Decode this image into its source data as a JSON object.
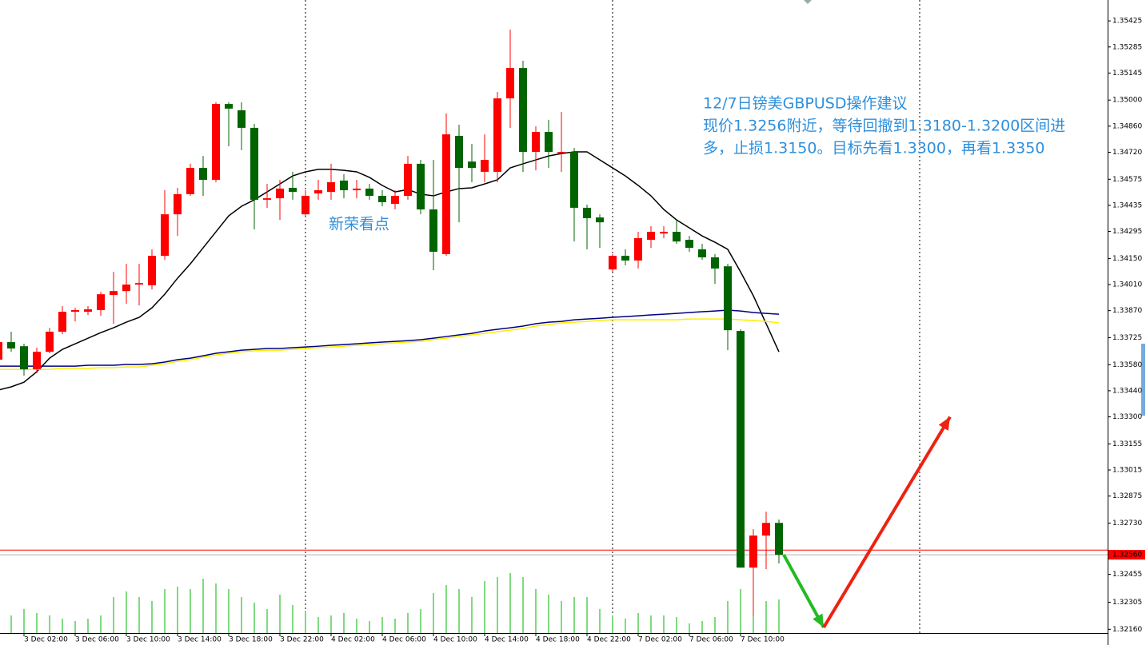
{
  "chart_data": {
    "type": "candlestick",
    "annotations": [
      "12/7日镑美GBPUSD操作建议",
      "现价1.3256附近，等待回撤到1.3180-1.3200区间进",
      "多，止损1.3150。目标先看1.3300，再看1.3350"
    ],
    "watermark": "新荣看点",
    "up_color": "#ff0000",
    "down_color": "#006400",
    "ylim": [
      1.3214,
      1.35537
    ],
    "yticks": [
      1.35425,
      1.35285,
      1.35145,
      {
        "value": 1.35,
        "label": "1.35000"
      },
      {
        "value": 1.3486,
        "label": "1.34860"
      },
      {
        "value": 1.3472,
        "label": "1.34720"
      },
      1.34575,
      1.34435,
      1.34295,
      {
        "value": 1.3415,
        "label": "1.34150"
      },
      {
        "value": 1.3401,
        "label": "1.34010"
      },
      {
        "value": 1.3387,
        "label": "1.33870"
      },
      1.33725,
      {
        "value": 1.3358,
        "label": "1.33580"
      },
      {
        "value": 1.3344,
        "label": "1.33440"
      },
      {
        "value": 1.333,
        "label": "1.33300"
      },
      1.33155,
      1.33015,
      1.32875,
      {
        "value": 1.3273,
        "label": "1.32730"
      },
      1.32455,
      1.32305,
      {
        "value": 1.3216,
        "label": "1.32160"
      }
    ],
    "categories": [
      null,
      null,
      "3 Dec 02:00",
      null,
      null,
      null,
      "3 Dec 06:00",
      null,
      null,
      null,
      "3 Dec 10:00",
      null,
      null,
      null,
      "3 Dec 14:00",
      null,
      null,
      null,
      "3 Dec 18:00",
      null,
      null,
      null,
      "3 Dec 22:00",
      null,
      null,
      null,
      "4 Dec 02:00",
      null,
      null,
      null,
      "4 Dec 06:00",
      null,
      null,
      null,
      "4 Dec 10:00",
      null,
      null,
      null,
      "4 Dec 14:00",
      null,
      null,
      null,
      "4 Dec 18:00",
      null,
      null,
      null,
      "4 Dec 22:00",
      null,
      null,
      null,
      "7 Dec 02:00",
      null,
      null,
      null,
      "7 Dec 06:00",
      null,
      null,
      null,
      "7 Dec 10:00",
      null,
      null,
      null
    ],
    "open": [
      1.33607,
      1.33701,
      1.33679,
      1.33555,
      1.33649,
      1.33757,
      1.33864,
      1.33864,
      1.33873,
      1.33954,
      1.33975,
      1.3401,
      1.34006,
      1.34164,
      1.34387,
      1.34495,
      1.34636,
      1.34572,
      1.34979,
      1.34945,
      1.34851,
      1.34465,
      1.34473,
      1.34529,
      1.34387,
      1.34499,
      1.34507,
      1.34568,
      1.34516,
      1.34525,
      1.34486,
      1.34443,
      1.34486,
      1.34658,
      1.34413,
      1.34173,
      1.34808,
      1.3467,
      1.34615,
      1.34615,
      1.35009,
      1.35172,
      1.34722,
      1.34829,
      1.34718,
      1.34722,
      1.34422,
      1.3437,
      1.34091,
      1.34164,
      1.34139,
      1.3425,
      1.34284,
      1.34293,
      1.3425,
      1.34199,
      1.34156,
      1.34108,
      1.33761,
      1.32491,
      1.32663,
      1.32731
    ],
    "high": [
      1.33735,
      1.33757,
      1.33692,
      1.33671,
      1.33778,
      1.33894,
      1.33885,
      1.33894,
      1.33971,
      1.34078,
      1.34121,
      1.34121,
      1.34199,
      1.34516,
      1.34529,
      1.34658,
      1.347,
      1.34988,
      1.34988,
      1.34988,
      1.34872,
      1.3455,
      1.34572,
      1.34615,
      1.34516,
      1.34572,
      1.34658,
      1.34602,
      1.34572,
      1.3455,
      1.34516,
      1.34516,
      1.347,
      1.34679,
      1.34679,
      1.34928,
      1.34868,
      1.34765,
      1.34816,
      1.35044,
      1.35378,
      1.35211,
      1.34859,
      1.34894,
      1.34936,
      1.34743,
      1.34439,
      1.34387,
      1.34173,
      1.34199,
      1.34293,
      1.34323,
      1.34323,
      1.34357,
      1.34271,
      1.34229,
      1.34173,
      1.34121,
      1.3377,
      1.32697,
      1.32791,
      1.32749
    ],
    "low": [
      1.33585,
      1.33649,
      1.33521,
      1.33534,
      1.33641,
      1.33744,
      1.33812,
      1.33847,
      1.33842,
      1.338,
      1.33907,
      1.33898,
      1.33984,
      1.34143,
      1.34271,
      1.34486,
      1.34486,
      1.34559,
      1.34752,
      1.34731,
      1.34306,
      1.34422,
      1.34357,
      1.34465,
      1.34379,
      1.34465,
      1.34465,
      1.34473,
      1.34473,
      1.34465,
      1.3443,
      1.34413,
      1.34465,
      1.34387,
      1.34087,
      1.34164,
      1.34344,
      1.34559,
      1.34559,
      1.34559,
      1.34851,
      1.34615,
      1.34623,
      1.34636,
      1.34615,
      1.34241,
      1.34199,
      1.34207,
      1.34078,
      1.34113,
      1.34096,
      1.34207,
      1.34259,
      1.34229,
      1.34186,
      1.34143,
      1.34014,
      1.33658,
      1.32491,
      1.32234,
      1.32483,
      1.32513
    ],
    "close": [
      1.33701,
      1.33667,
      1.33555,
      1.33649,
      1.33757,
      1.33864,
      1.33873,
      1.33877,
      1.33958,
      1.33975,
      1.3401,
      1.34018,
      1.34164,
      1.34387,
      1.34495,
      1.34636,
      1.34572,
      1.34979,
      1.34954,
      1.34851,
      1.34465,
      1.34473,
      1.34525,
      1.34507,
      1.34486,
      1.34516,
      1.34559,
      1.34516,
      1.34525,
      1.34486,
      1.34452,
      1.34486,
      1.34658,
      1.34413,
      1.34186,
      1.34816,
      1.34636,
      1.34636,
      1.34679,
      1.35009,
      1.35172,
      1.34722,
      1.34829,
      1.34722,
      1.34722,
      1.34422,
      1.34366,
      1.34344,
      1.34164,
      1.34139,
      1.34259,
      1.34293,
      1.34293,
      1.34241,
      1.34207,
      1.34156,
      1.34096,
      1.33765,
      1.32491,
      1.32663,
      1.32731,
      1.3256
    ],
    "moving_averages": [
      {
        "color": "#000000",
        "values": [
          1.33444,
          1.33461,
          1.33486,
          1.33542,
          1.33615,
          1.33662,
          1.33692,
          1.33722,
          1.33752,
          1.33778,
          1.33808,
          1.33834,
          1.33885,
          1.33958,
          1.34044,
          1.34121,
          1.34207,
          1.34293,
          1.34379,
          1.3443,
          1.34465,
          1.34507,
          1.3455,
          1.34593,
          1.34615,
          1.34628,
          1.34628,
          1.34623,
          1.34615,
          1.34585,
          1.34542,
          1.34507,
          1.3452,
          1.34495,
          1.34486,
          1.34507,
          1.34525,
          1.34529,
          1.3455,
          1.34572,
          1.34636,
          1.34658,
          1.34679,
          1.347,
          1.34713,
          1.34722,
          1.34722,
          1.34679,
          1.34636,
          1.34593,
          1.34542,
          1.34486,
          1.34413,
          1.34357,
          1.34314,
          1.34271,
          1.34237,
          1.34199,
          1.34078,
          1.3395,
          1.338,
          1.33649
        ]
      },
      {
        "color": "#ffee00",
        "values": [
          1.33555,
          1.33555,
          1.33555,
          1.33555,
          1.33555,
          1.3356,
          1.3356,
          1.3356,
          1.33564,
          1.33564,
          1.33568,
          1.33568,
          1.33577,
          1.33585,
          1.33598,
          1.33607,
          1.3362,
          1.33632,
          1.33641,
          1.33649,
          1.33654,
          1.33658,
          1.33658,
          1.33662,
          1.33667,
          1.33671,
          1.33675,
          1.33679,
          1.33684,
          1.33688,
          1.33692,
          1.33697,
          1.33701,
          1.33705,
          1.33714,
          1.33722,
          1.33731,
          1.3374,
          1.33748,
          1.33757,
          1.33765,
          1.33774,
          1.33787,
          1.33795,
          1.33804,
          1.33808,
          1.33812,
          1.33817,
          1.33821,
          1.33821,
          1.33821,
          1.33821,
          1.33821,
          1.33821,
          1.33825,
          1.33825,
          1.33825,
          1.33825,
          1.33821,
          1.33817,
          1.33812,
          1.33804
        ]
      },
      {
        "color": "#000080",
        "values": [
          1.33572,
          1.33572,
          1.33572,
          1.33572,
          1.33572,
          1.33572,
          1.33572,
          1.33577,
          1.33577,
          1.33577,
          1.33581,
          1.33581,
          1.33585,
          1.33594,
          1.33607,
          1.33615,
          1.33628,
          1.33641,
          1.33649,
          1.33658,
          1.33662,
          1.33667,
          1.33667,
          1.33671,
          1.33675,
          1.33679,
          1.33684,
          1.33688,
          1.33692,
          1.33697,
          1.33701,
          1.33705,
          1.33709,
          1.33714,
          1.33722,
          1.33731,
          1.3374,
          1.33748,
          1.33761,
          1.3377,
          1.33778,
          1.33787,
          1.338,
          1.33808,
          1.33812,
          1.33821,
          1.33825,
          1.33829,
          1.33834,
          1.33838,
          1.33842,
          1.33847,
          1.33851,
          1.33855,
          1.3386,
          1.33864,
          1.33868,
          1.33873,
          1.33868,
          1.3386,
          1.33855,
          1.33851
        ]
      }
    ],
    "volume_color": "#00b400",
    "volumes": [
      15,
      22,
      30,
      25,
      22,
      18,
      15,
      18,
      22,
      45,
      52,
      45,
      40,
      55,
      58,
      55,
      68,
      62,
      55,
      45,
      38,
      30,
      48,
      35,
      28,
      20,
      22,
      25,
      18,
      15,
      20,
      18,
      25,
      30,
      50,
      60,
      55,
      45,
      65,
      70,
      75,
      70,
      55,
      48,
      40,
      45,
      45,
      30,
      22,
      18,
      25,
      22,
      22,
      20,
      12,
      15,
      20,
      40,
      55,
      70,
      40,
      42
    ],
    "ask_line": 1.32585,
    "price_label": {
      "value": 1.3256,
      "label": "1.32560"
    },
    "forecast": [
      {
        "color": "#22bb22",
        "values": [
          1.3256,
          1.3217
        ]
      },
      {
        "color": "#ee2211",
        "values": [
          1.3217,
          1.333
        ]
      }
    ]
  }
}
